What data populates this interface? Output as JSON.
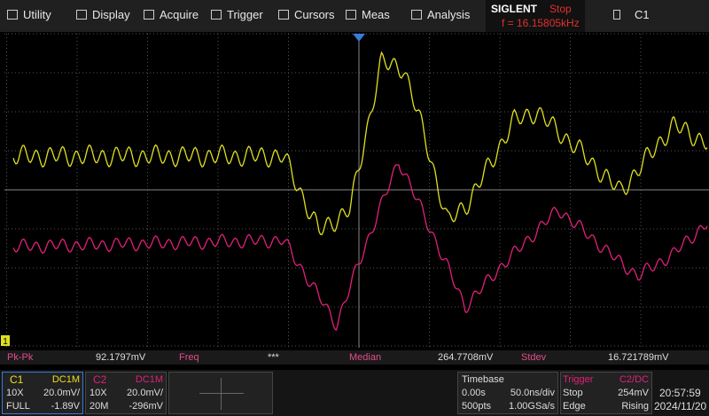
{
  "menu": {
    "items": [
      "Utility",
      "Display",
      "Acquire",
      "Trigger",
      "Cursors",
      "Meas",
      "Analysis"
    ],
    "brand": "SIGLENT",
    "status": "Stop",
    "frequency": "f = 16.15805kHz",
    "channel": "C1"
  },
  "markers": {
    "c1": "1"
  },
  "measurements": [
    {
      "label": "Pk-Pk",
      "value": "92.1797mV"
    },
    {
      "label": "Freq",
      "value": "***"
    },
    {
      "label": "Median",
      "value": "264.7708mV"
    },
    {
      "label": "Stdev",
      "value": "16.721789mV"
    }
  ],
  "channels": [
    {
      "name": "C1",
      "coupling": "DC1M",
      "probe": "10X",
      "scale": "20.0mV/",
      "bandwidth": "FULL",
      "offset": "-1.89V"
    },
    {
      "name": "C2",
      "coupling": "DC1M",
      "probe": "10X",
      "scale": "20.0mV/",
      "bandwidth": "20M",
      "offset": "-296mV"
    }
  ],
  "timebase": {
    "title": "Timebase",
    "delay": "0.00s",
    "scale": "50.0ns/div",
    "points": "500pts",
    "rate": "1.00GSa/s"
  },
  "trigger": {
    "title": "Trigger",
    "source": "C2/DC",
    "state": "Stop",
    "level": "254mV",
    "type": "Edge",
    "slope": "Rising"
  },
  "clock": {
    "time": "20:57:59",
    "date": "2024/11/20"
  }
}
